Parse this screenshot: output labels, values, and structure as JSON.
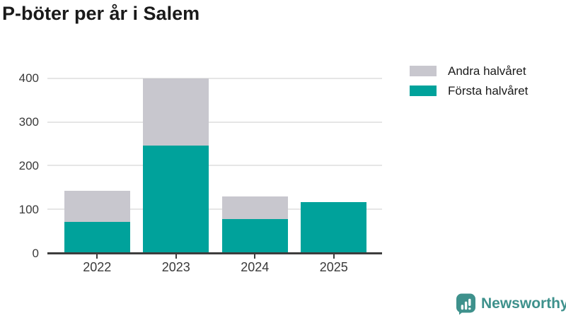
{
  "chart_data": {
    "type": "bar",
    "stacked": true,
    "title": "P-böter per år i Salem",
    "categories": [
      "2022",
      "2023",
      "2024",
      "2025"
    ],
    "series": [
      {
        "name": "Första halvåret",
        "color": "#00a29b",
        "values": [
          72,
          246,
          78,
          116
        ]
      },
      {
        "name": "Andra halvåret",
        "color": "#c8c7ce",
        "values": [
          71,
          154,
          52,
          0
        ]
      }
    ],
    "stack_totals": [
      143,
      400,
      130,
      116
    ],
    "xlabel": "",
    "ylabel": "",
    "ylim": [
      0,
      400
    ],
    "yticks": [
      0,
      100,
      200,
      300,
      400
    ],
    "grid": true,
    "gridline_color": "#e6e6e6",
    "axis_color": "#3d3d3d",
    "tick_label_color": "#3a3a3a",
    "legend_position": "top-right"
  },
  "legend": {
    "items": [
      {
        "label": "Andra halvåret",
        "color": "#c8c7ce"
      },
      {
        "label": "Första halvåret",
        "color": "#00a29b"
      }
    ]
  },
  "branding": {
    "logo_text": "Newsworthy",
    "logo_color": "#3e918c",
    "logo_icon": "bar-chart-speech-bubble-icon"
  }
}
